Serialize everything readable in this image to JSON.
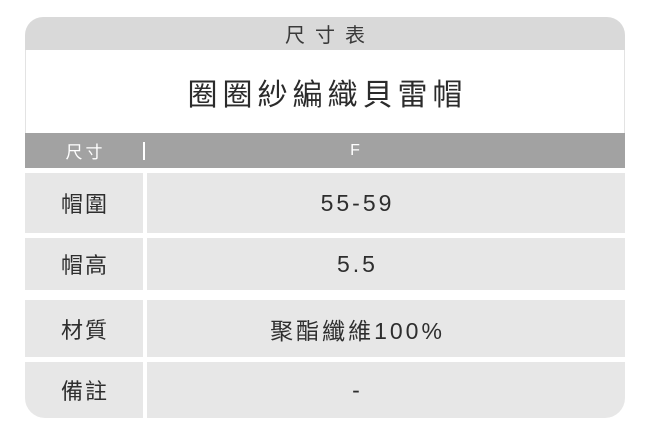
{
  "tab": {
    "title": "尺寸表"
  },
  "product": {
    "title": "圈圈紗編織貝雷帽"
  },
  "table": {
    "header": {
      "label": "尺寸",
      "value": "F"
    },
    "size_rows": [
      {
        "label": "帽圍",
        "value": "55-59"
      },
      {
        "label": "帽高",
        "value": "5.5"
      }
    ],
    "info_rows": [
      {
        "label": "材質",
        "value": "聚酯纖維100%"
      },
      {
        "label": "備註",
        "value": "-"
      }
    ]
  },
  "colors": {
    "tab_background": "#d9d9d9",
    "header_background": "#a2a2a2",
    "row_background": "#e7e7e7",
    "header_text": "#ffffff",
    "body_text": "#2e2e2e",
    "page_background": "#ffffff"
  }
}
